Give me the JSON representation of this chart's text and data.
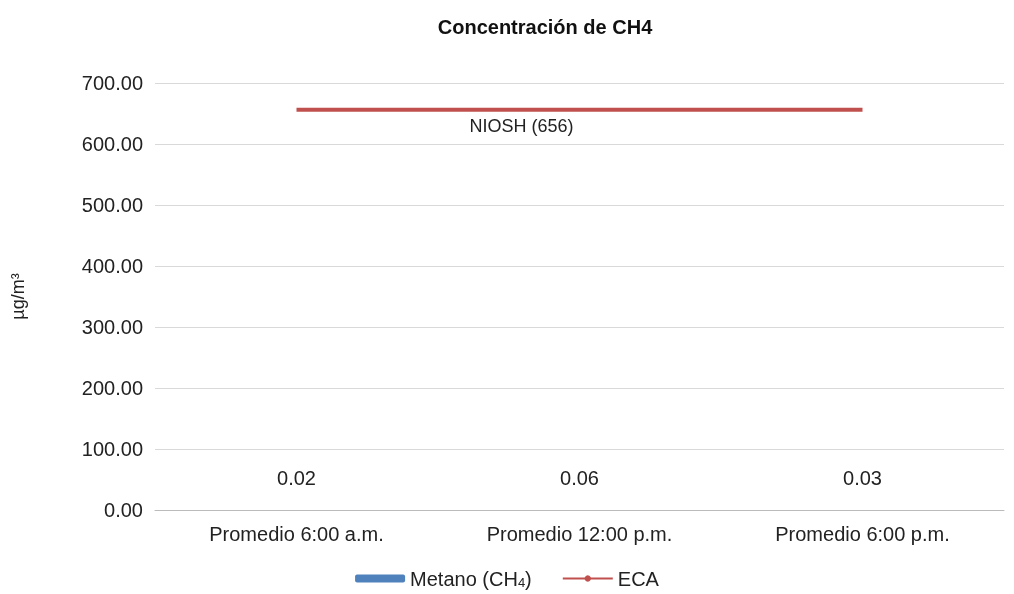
{
  "chart_data": {
    "type": "bar",
    "title": "Concentración de CH4",
    "ylabel": "µg/m³",
    "categories": [
      "Promedio 6:00 a.m.",
      "Promedio 12:00 p.m.",
      "Promedio 6:00 p.m."
    ],
    "series": [
      {
        "name": "Metano (CH$_{4}$)",
        "color": "#4f81bd",
        "values": [
          0.02,
          0.06,
          0.03
        ],
        "value_labels": [
          "0.02",
          "0.06",
          "0.03"
        ]
      },
      {
        "name": "ECA",
        "type": "line",
        "color": "#c0504d",
        "values": [
          656,
          656,
          656
        ]
      }
    ],
    "marker": "none",
    "annotations": [
      {
        "text": "NIOSH (656)",
        "x": "Promedio 12:00 p.m.",
        "y": 656
      }
    ],
    "ylim": [
      0,
      700
    ],
    "yticks": [
      {
        "value": 0,
        "label": "0.00"
      },
      {
        "value": 100,
        "label": "100.00"
      },
      {
        "value": 200,
        "label": "200.00"
      },
      {
        "value": 300,
        "label": "300.00"
      },
      {
        "value": 400,
        "label": "400.00"
      },
      {
        "value": 500,
        "label": "500.00"
      },
      {
        "value": 600,
        "label": "600.00"
      },
      {
        "value": 700,
        "label": "700.00"
      }
    ],
    "grid": "y",
    "legend": "bottom"
  }
}
